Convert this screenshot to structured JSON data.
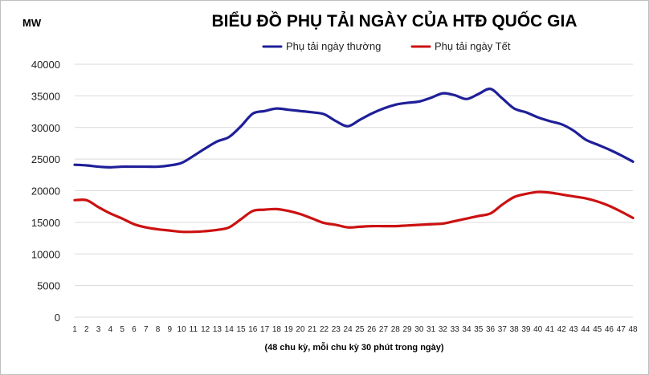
{
  "chart_data": {
    "type": "line",
    "title": "BIỂU ĐỒ PHỤ TẢI NGÀY CỦA HTĐ QUỐC GIA",
    "ylabel": "MW",
    "xlabel": "(48 chu kỳ, mỗi chu kỳ 30 phút trong ngày)",
    "ylim": [
      0,
      40000
    ],
    "yticks": [
      0,
      5000,
      10000,
      15000,
      20000,
      25000,
      30000,
      35000,
      40000
    ],
    "grid": true,
    "legend": "top-center",
    "categories": [
      "1",
      "2",
      "3",
      "4",
      "5",
      "6",
      "7",
      "8",
      "9",
      "10",
      "11",
      "12",
      "13",
      "14",
      "15",
      "16",
      "17",
      "18",
      "19",
      "20",
      "21",
      "22",
      "23",
      "24",
      "25",
      "26",
      "27",
      "28",
      "29",
      "30",
      "31",
      "32",
      "33",
      "34",
      "35",
      "36",
      "37",
      "38",
      "39",
      "40",
      "41",
      "42",
      "43",
      "44",
      "45",
      "46",
      "47",
      "48"
    ],
    "series": [
      {
        "name": "Phụ tải ngày thường",
        "color": "#1f1f99",
        "values": [
          24100,
          24000,
          23800,
          23700,
          23800,
          23800,
          23800,
          23800,
          24000,
          24400,
          25500,
          26700,
          27800,
          28500,
          30200,
          32200,
          32600,
          33000,
          32800,
          32600,
          32400,
          32100,
          31000,
          30200,
          31200,
          32200,
          33000,
          33600,
          33900,
          34100,
          34700,
          35400,
          35100,
          34500,
          35300,
          36100,
          34600,
          33000,
          32400,
          31600,
          31000,
          30500,
          29500,
          28100,
          27300,
          26500,
          25600,
          24600
        ]
      },
      {
        "name": "Phụ tải ngày Tết",
        "color": "#cc1111",
        "values": [
          18500,
          18500,
          17400,
          16400,
          15600,
          14700,
          14200,
          13900,
          13700,
          13500,
          13500,
          13600,
          13800,
          14200,
          15500,
          16800,
          17000,
          17100,
          16800,
          16300,
          15600,
          14900,
          14600,
          14200,
          14300,
          14400,
          14400,
          14400,
          14500,
          14600,
          14700,
          14800,
          15200,
          15600,
          16000,
          16400,
          17800,
          19000,
          19500,
          19800,
          19700,
          19400,
          19100,
          18800,
          18300,
          17600,
          16700,
          15700
        ]
      }
    ]
  }
}
